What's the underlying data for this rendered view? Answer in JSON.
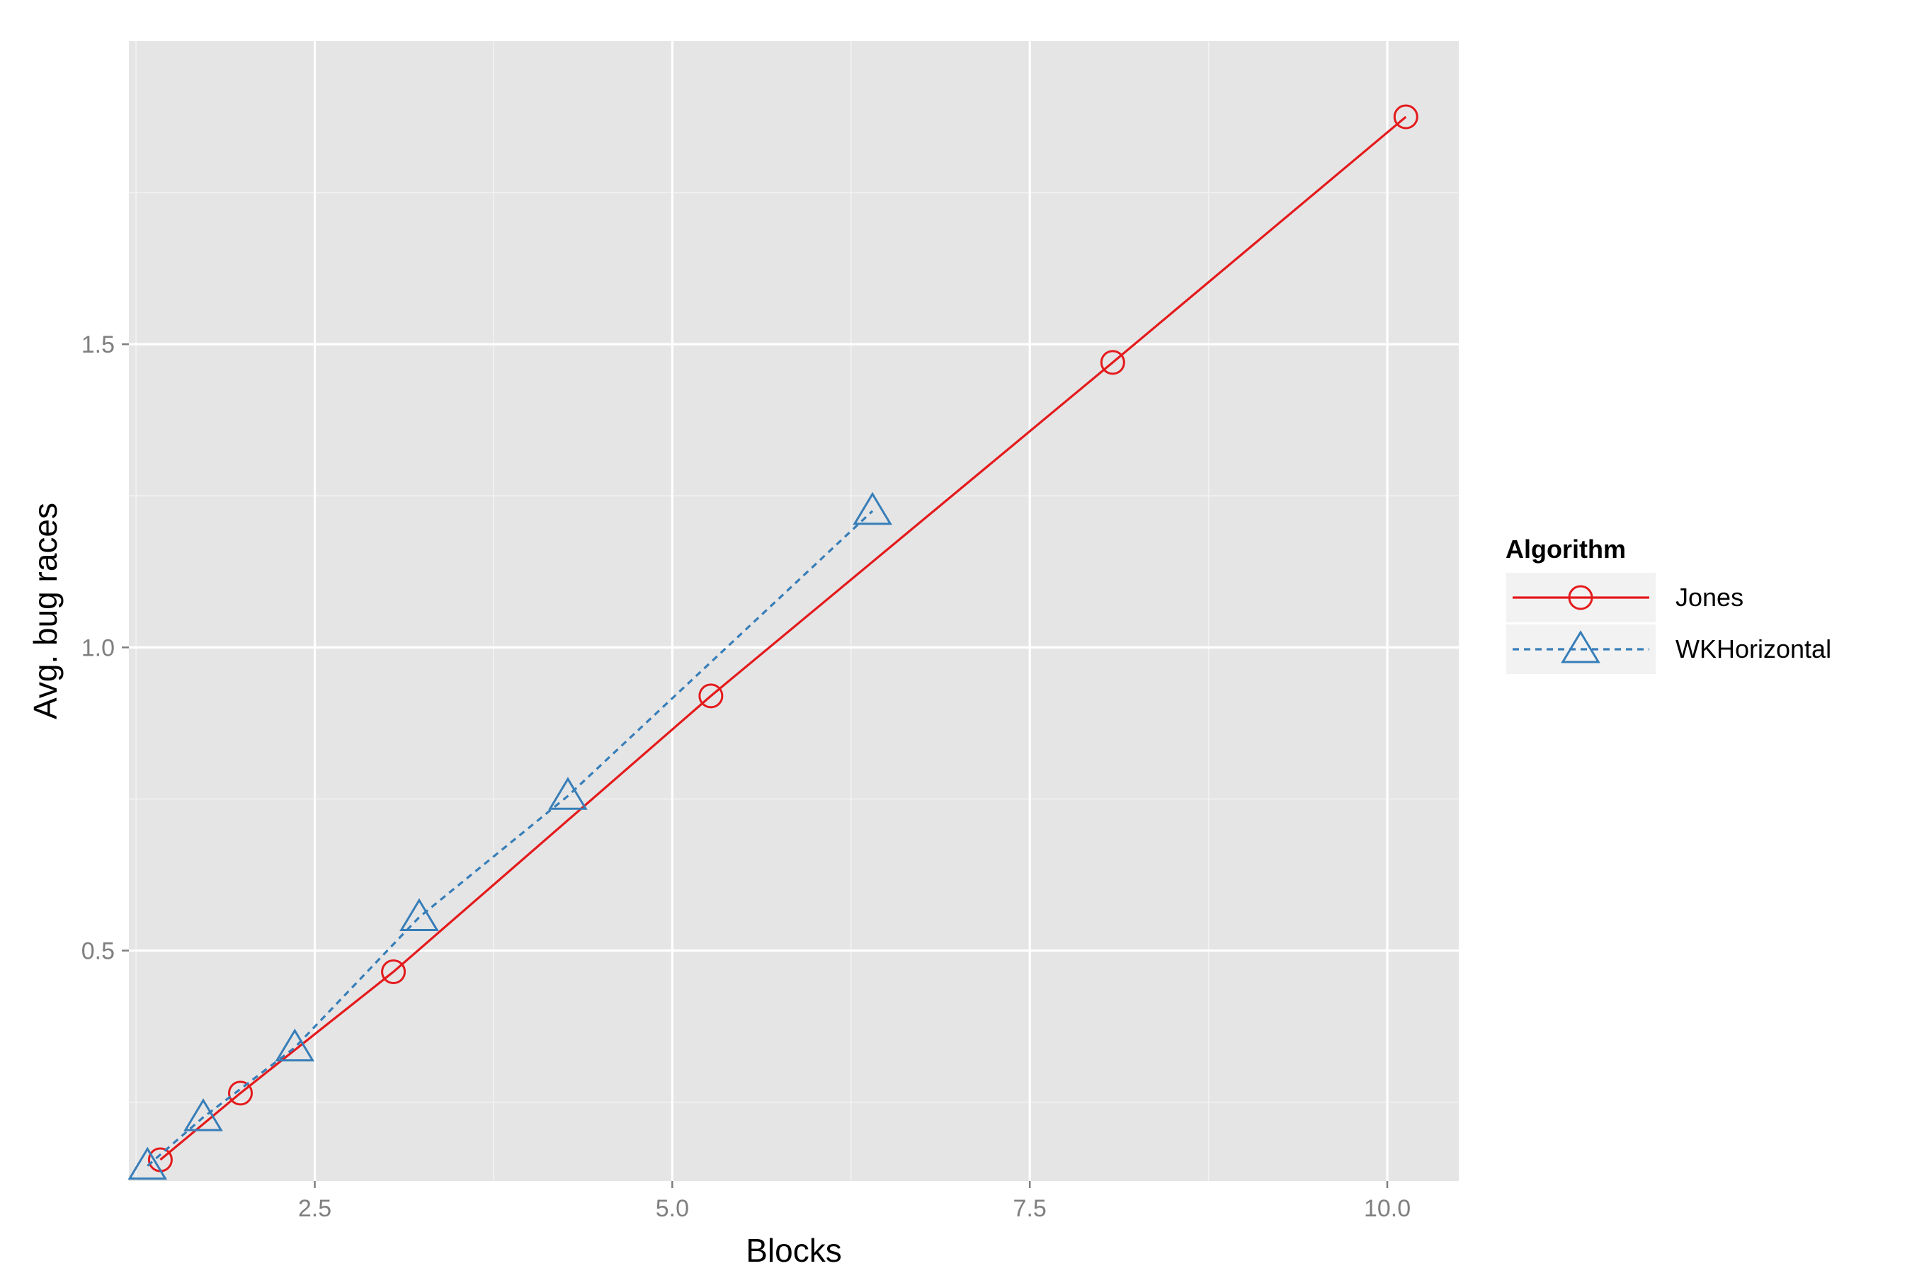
{
  "chart_data": {
    "type": "line",
    "xlabel": "Blocks",
    "ylabel": "Avg. bug races",
    "xlim": [
      1.2,
      10.5
    ],
    "ylim": [
      0.12,
      2.0
    ],
    "x_ticks": [
      2.5,
      5.0,
      7.5,
      10.0
    ],
    "x_tick_labels": [
      "2.5",
      "5.0",
      "7.5",
      "10.0"
    ],
    "y_ticks": [
      0.5,
      1.0,
      1.5
    ],
    "y_tick_labels": [
      "0.5",
      "1.0",
      "1.5"
    ],
    "grid": true,
    "legend": {
      "title": "Algorithm",
      "placement": "right"
    },
    "series": [
      {
        "name": "Jones",
        "color": "#e41a1c",
        "line_style": "solid",
        "marker": "circle",
        "x": [
          1.42,
          1.98,
          3.05,
          5.27,
          8.08,
          10.13
        ],
        "y": [
          0.155,
          0.265,
          0.465,
          0.92,
          1.47,
          1.875
        ]
      },
      {
        "name": "WKHorizontal",
        "color": "#377eb8",
        "line_style": "dashed",
        "marker": "triangle",
        "x": [
          1.33,
          1.72,
          2.36,
          3.23,
          4.27,
          6.4
        ],
        "y": [
          0.145,
          0.225,
          0.34,
          0.555,
          0.755,
          1.225
        ]
      }
    ]
  }
}
